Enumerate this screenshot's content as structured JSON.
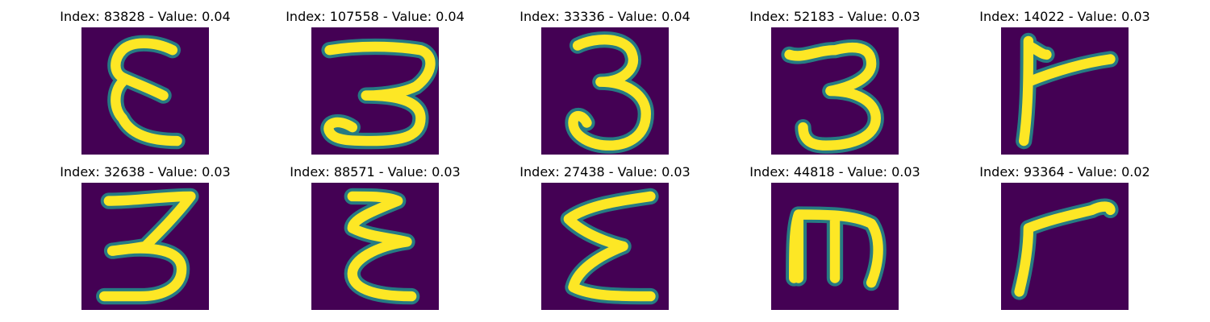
{
  "figure": {
    "colormap": "viridis",
    "background_color": "#ffffff",
    "image_background_color": "#440154",
    "stroke_color": "#fde725",
    "stroke_edge_color": "#21918c",
    "panels": [
      {
        "title": "Index: 83828 - Value: 0.04",
        "index": 83828,
        "value": 0.04,
        "glyph": "handwritten-epsilon"
      },
      {
        "title": "Index: 107558 - Value: 0.04",
        "index": 107558,
        "value": 0.04,
        "glyph": "handwritten-3-loop"
      },
      {
        "title": "Index: 33336 - Value: 0.04",
        "index": 33336,
        "value": 0.04,
        "glyph": "handwritten-3"
      },
      {
        "title": "Index: 52183 - Value: 0.03",
        "index": 52183,
        "value": 0.03,
        "glyph": "handwritten-3"
      },
      {
        "title": "Index: 14022 - Value: 0.03",
        "index": 14022,
        "value": 0.03,
        "glyph": "handwritten-r"
      },
      {
        "title": "Index: 32638 - Value: 0.03",
        "index": 32638,
        "value": 0.03,
        "glyph": "handwritten-3"
      },
      {
        "title": "Index: 88571 - Value: 0.03",
        "index": 88571,
        "value": 0.03,
        "glyph": "handwritten-sigma"
      },
      {
        "title": "Index: 27438 - Value: 0.03",
        "index": 27438,
        "value": 0.03,
        "glyph": "handwritten-sigma"
      },
      {
        "title": "Index: 44818 - Value: 0.03",
        "index": 44818,
        "value": 0.03,
        "glyph": "handwritten-m"
      },
      {
        "title": "Index: 93364 - Value: 0.02",
        "index": 93364,
        "value": 0.02,
        "glyph": "handwritten-r"
      }
    ]
  }
}
